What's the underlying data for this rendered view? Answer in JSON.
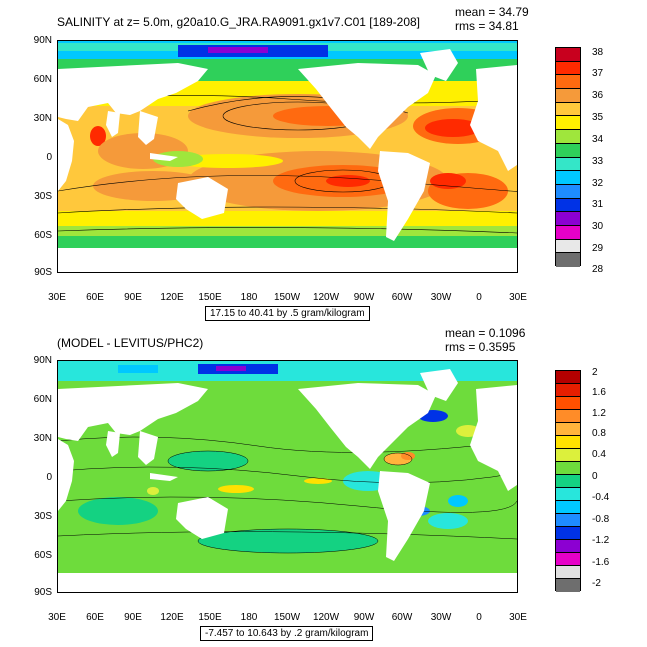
{
  "panels": [
    {
      "title": "SALINITY at z=   5.0m, g20a10.G_JRA.RA9091.gx1v7.C01 [189-208]",
      "mean": "mean = 34.79",
      "rms": "rms = 34.81",
      "range_label": "17.15 to 40.41 by .5 gram/kilogram",
      "colorbar": {
        "labels": [
          "38",
          "37",
          "36",
          "35",
          "34",
          "33",
          "32",
          "31",
          "30",
          "29",
          "28"
        ],
        "colors": [
          "#c8001e",
          "#ff2a00",
          "#ff6a10",
          "#f59a3a",
          "#ffc83c",
          "#fff000",
          "#9fe63c",
          "#2fd05a",
          "#34e6c8",
          "#00c8ff",
          "#1e8cff",
          "#0032e6",
          "#8c00d2",
          "#e600c8",
          "#e8e8e8",
          "#6e6e6e"
        ]
      }
    },
    {
      "title": "(MODEL - LEVITUS/PHC2)",
      "mean": "mean = 0.1096",
      "rms": "rms = 0.3595",
      "range_label": "-7.457 to 10.643 by .2 gram/kilogram",
      "colorbar": {
        "labels": [
          "2",
          "1.6",
          "1.2",
          "0.8",
          "0.4",
          "0",
          "-0.4",
          "-0.8",
          "-1.2",
          "-1.6",
          "-2"
        ],
        "colors": [
          "#b40000",
          "#e61e00",
          "#ff5000",
          "#ff8c28",
          "#ffb43c",
          "#ffe100",
          "#dcf03c",
          "#6edc3c",
          "#14d282",
          "#28e6dc",
          "#00c8ff",
          "#1e8cff",
          "#0032e6",
          "#8c00d2",
          "#e600c8",
          "#e0e0e0",
          "#6e6e6e"
        ]
      }
    }
  ],
  "axes": {
    "y_labels": [
      "90N",
      "60N",
      "30N",
      "0",
      "30S",
      "60S",
      "90S"
    ],
    "x_labels": [
      "30E",
      "60E",
      "90E",
      "120E",
      "150E",
      "180",
      "150W",
      "120W",
      "90W",
      "60W",
      "30W",
      "0",
      "30E"
    ]
  }
}
